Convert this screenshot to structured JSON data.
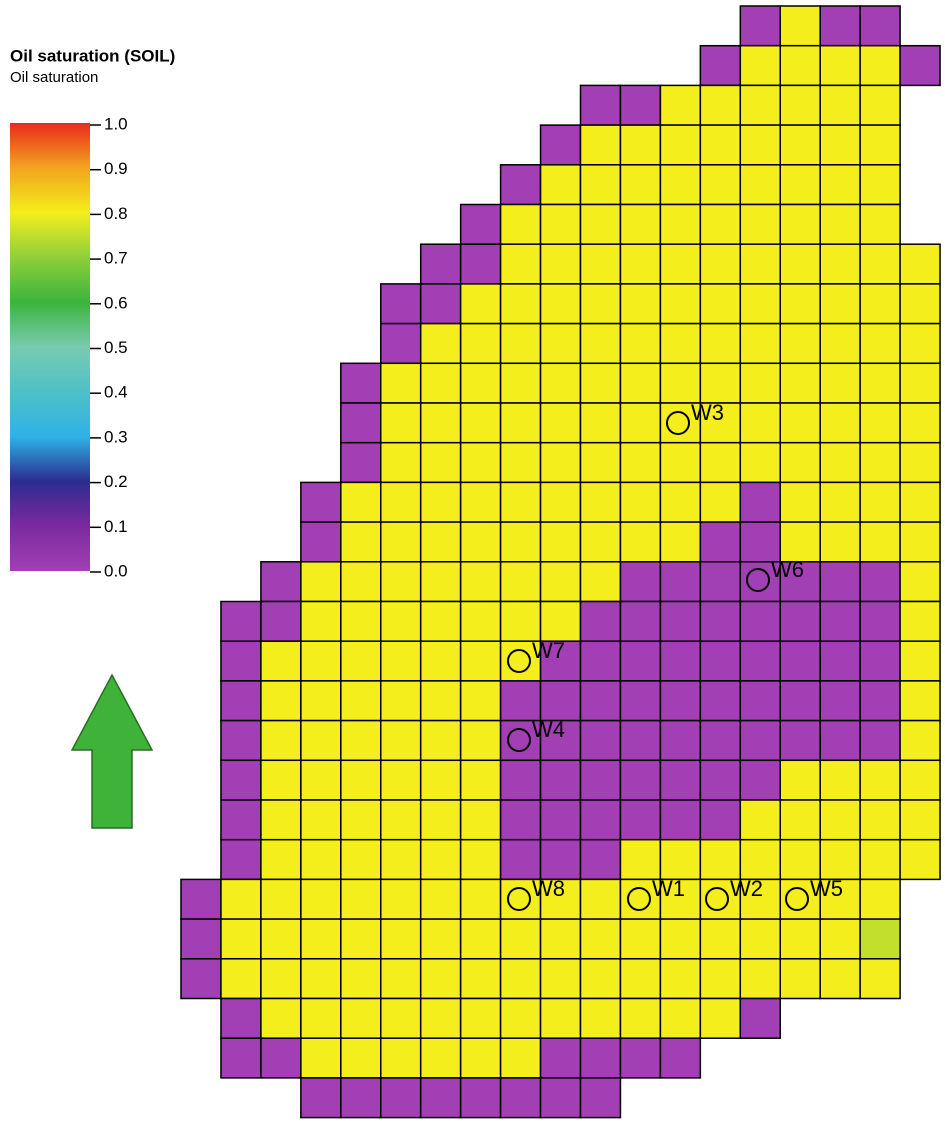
{
  "chart_data": {
    "type": "grid-map",
    "title": "Oil saturation (SOIL)",
    "subtitle": "Oil saturation",
    "clim": [
      0,
      1
    ],
    "colorscale": [
      "#a23fb4",
      "#7b2a9e",
      "#2c2c8e",
      "#2fb2e6",
      "#4fc0c8",
      "#78cbb0",
      "#3cb43c",
      "#8fd03a",
      "#f4ee1c",
      "#f2a41e",
      "#ea2a1c"
    ],
    "cticks": [
      {
        "value": 0,
        "label": "0.0"
      },
      0.1,
      0.2,
      0.3,
      0.4,
      0.5,
      0.6,
      0.7,
      0.8,
      0.9,
      {
        "value": 1,
        "label": "1.0"
      }
    ],
    "cells": [
      [
        null,
        null,
        null,
        null,
        null,
        null,
        null,
        null,
        null,
        null,
        null,
        null,
        null,
        null,
        0,
        0.8,
        0,
        0,
        null
      ],
      [
        null,
        null,
        null,
        null,
        null,
        null,
        null,
        null,
        null,
        null,
        null,
        null,
        null,
        0,
        0.8,
        0.8,
        0.8,
        0.8,
        0
      ],
      [
        null,
        null,
        null,
        null,
        null,
        null,
        null,
        null,
        null,
        null,
        0,
        0,
        0.8,
        0.8,
        0.8,
        0.8,
        0.8,
        0.8,
        null
      ],
      [
        null,
        null,
        null,
        null,
        null,
        null,
        null,
        null,
        null,
        0,
        0.8,
        0.8,
        0.8,
        0.8,
        0.8,
        0.8,
        0.8,
        0.8,
        null
      ],
      [
        null,
        null,
        null,
        null,
        null,
        null,
        null,
        null,
        0,
        0.8,
        0.8,
        0.8,
        0.8,
        0.8,
        0.8,
        0.8,
        0.8,
        0.8,
        null
      ],
      [
        null,
        null,
        null,
        null,
        null,
        null,
        null,
        0,
        0.8,
        0.8,
        0.8,
        0.8,
        0.8,
        0.8,
        0.8,
        0.8,
        0.8,
        0.8,
        null
      ],
      [
        null,
        null,
        null,
        null,
        null,
        null,
        0,
        0,
        0.8,
        0.8,
        0.8,
        0.8,
        0.8,
        0.8,
        0.8,
        0.8,
        0.8,
        0.8,
        0.8
      ],
      [
        null,
        null,
        null,
        null,
        null,
        0,
        0,
        0.8,
        0.8,
        0.8,
        0.8,
        0.8,
        0.8,
        0.8,
        0.8,
        0.8,
        0.8,
        0.8,
        0.8
      ],
      [
        null,
        null,
        null,
        null,
        null,
        0,
        0.8,
        0.8,
        0.8,
        0.8,
        0.8,
        0.8,
        0.8,
        0.8,
        0.8,
        0.8,
        0.8,
        0.8,
        0.8
      ],
      [
        null,
        null,
        null,
        null,
        0,
        0.8,
        0.8,
        0.8,
        0.8,
        0.8,
        0.8,
        0.8,
        0.8,
        0.8,
        0.8,
        0.8,
        0.8,
        0.8,
        0.8
      ],
      [
        null,
        null,
        null,
        null,
        0,
        0.8,
        0.8,
        0.8,
        0.8,
        0.8,
        0.8,
        0.8,
        0.8,
        0.8,
        0.8,
        0.8,
        0.8,
        0.8,
        0.8
      ],
      [
        null,
        null,
        null,
        null,
        0,
        0.8,
        0.8,
        0.8,
        0.8,
        0.8,
        0.8,
        0.8,
        0.8,
        0.8,
        0.8,
        0.8,
        0.8,
        0.8,
        0.8
      ],
      [
        null,
        null,
        null,
        0,
        0.8,
        0.8,
        0.8,
        0.8,
        0.8,
        0.8,
        0.8,
        0.8,
        0.8,
        0.8,
        0,
        0.8,
        0.8,
        0.8,
        0.8
      ],
      [
        null,
        null,
        null,
        0,
        0.8,
        0.8,
        0.8,
        0.8,
        0.8,
        0.8,
        0.8,
        0.8,
        0.8,
        0,
        0,
        0.8,
        0.8,
        0.8,
        0.8
      ],
      [
        null,
        null,
        0,
        0.8,
        0.8,
        0.8,
        0.8,
        0.8,
        0.8,
        0.8,
        0.8,
        0,
        0,
        0,
        0,
        0,
        0,
        0,
        0.8
      ],
      [
        null,
        0,
        0,
        0.8,
        0.8,
        0.8,
        0.8,
        0.8,
        0.8,
        0.8,
        0,
        0,
        0,
        0,
        0,
        0,
        0,
        0,
        0.8
      ],
      [
        null,
        0,
        0.8,
        0.8,
        0.8,
        0.8,
        0.8,
        0.8,
        0.8,
        0,
        0,
        0,
        0,
        0,
        0,
        0,
        0,
        0,
        0.8
      ],
      [
        null,
        0,
        0.8,
        0.8,
        0.8,
        0.8,
        0.8,
        0.8,
        0,
        0,
        0,
        0,
        0,
        0,
        0,
        0,
        0,
        0,
        0.8
      ],
      [
        null,
        0,
        0.8,
        0.8,
        0.8,
        0.8,
        0.8,
        0.8,
        0,
        0,
        0,
        0,
        0,
        0,
        0,
        0,
        0,
        0,
        0.8
      ],
      [
        null,
        0,
        0.8,
        0.8,
        0.8,
        0.8,
        0.8,
        0.8,
        0,
        0,
        0,
        0,
        0,
        0,
        0,
        0.8,
        0.8,
        0.8,
        0.8
      ],
      [
        null,
        0,
        0.8,
        0.8,
        0.8,
        0.8,
        0.8,
        0.8,
        0,
        0,
        0,
        0,
        0,
        0,
        0.8,
        0.8,
        0.8,
        0.8,
        0.8
      ],
      [
        null,
        0,
        0.8,
        0.8,
        0.8,
        0.8,
        0.8,
        0.8,
        0,
        0,
        0,
        0.8,
        0.8,
        0.8,
        0.8,
        0.8,
        0.8,
        0.8,
        0.8
      ],
      [
        0,
        0.8,
        0.8,
        0.8,
        0.8,
        0.8,
        0.8,
        0.8,
        0.8,
        0.8,
        0.8,
        0.8,
        0.8,
        0.8,
        0.8,
        0.8,
        0.8,
        0.8,
        null
      ],
      [
        0,
        0.8,
        0.8,
        0.8,
        0.8,
        0.8,
        0.8,
        0.8,
        0.8,
        0.8,
        0.8,
        0.8,
        0.8,
        0.8,
        0.8,
        0.8,
        0.8,
        0.75,
        null
      ],
      [
        0,
        0.8,
        0.8,
        0.8,
        0.8,
        0.8,
        0.8,
        0.8,
        0.8,
        0.8,
        0.8,
        0.8,
        0.8,
        0.8,
        0.8,
        0.8,
        0.8,
        0.8,
        null
      ],
      [
        null,
        0,
        0.8,
        0.8,
        0.8,
        0.8,
        0.8,
        0.8,
        0.8,
        0.8,
        0.8,
        0.8,
        0.8,
        0.8,
        0,
        null,
        null,
        null,
        null
      ],
      [
        null,
        0,
        0,
        0.8,
        0.8,
        0.8,
        0.8,
        0.8,
        0.8,
        0,
        0,
        0,
        0,
        null,
        null,
        null,
        null,
        null,
        null
      ],
      [
        null,
        null,
        null,
        0,
        0,
        0,
        0,
        0,
        0,
        0,
        0,
        null,
        null,
        null,
        null,
        null,
        null,
        null,
        null
      ]
    ],
    "wells": [
      "W3",
      "W6",
      "W7",
      "W4",
      "W8",
      "W1",
      "W2",
      "W5"
    ]
  }
}
